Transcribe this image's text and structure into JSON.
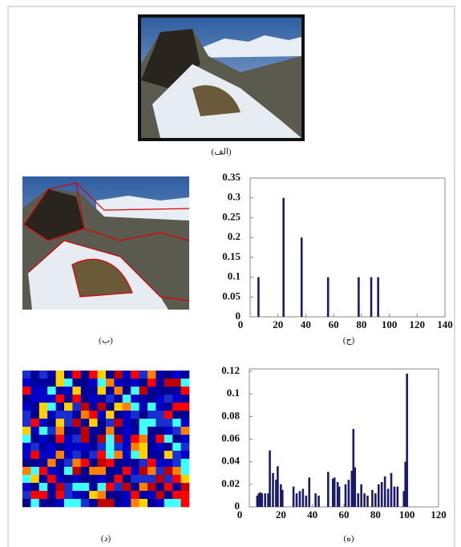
{
  "captions": [
    "(الف)",
    "(ب)",
    "(ج)",
    "(د)",
    "(ه)"
  ],
  "chart_data": [
    {
      "type": "bar",
      "color": "#1b1b6b",
      "x": [
        6,
        24,
        37,
        56,
        78,
        87,
        92
      ],
      "values": [
        0.1,
        0.3,
        0.2,
        0.1,
        0.1,
        0.1,
        0.1
      ],
      "xlim": [
        0,
        140
      ],
      "xticks": [
        0,
        20,
        40,
        60,
        80,
        100,
        120,
        140
      ],
      "ylim": [
        0,
        0.35
      ],
      "yticks": [
        0,
        0.05,
        0.1,
        0.15,
        0.2,
        0.25,
        0.3,
        0.35
      ]
    },
    {
      "type": "bar",
      "color": "#1b1b6b",
      "x": [
        5,
        6,
        7,
        8,
        10,
        12,
        13,
        15,
        17,
        18,
        20,
        21,
        28,
        30,
        32,
        34,
        36,
        38,
        42,
        44,
        50,
        53,
        54,
        56,
        57,
        61,
        63,
        65,
        66,
        67,
        69,
        71,
        73,
        75,
        78,
        80,
        82,
        84,
        86,
        88,
        90,
        92,
        94,
        98,
        99,
        100
      ],
      "values": [
        0.01,
        0.012,
        0.013,
        0.012,
        0.012,
        0.012,
        0.05,
        0.03,
        0.024,
        0.036,
        0.02,
        0.015,
        0.018,
        0.012,
        0.014,
        0.016,
        0.01,
        0.026,
        0.012,
        0.01,
        0.031,
        0.025,
        0.026,
        0.022,
        0.018,
        0.02,
        0.024,
        0.032,
        0.069,
        0.035,
        0.012,
        0.02,
        0.012,
        0.01,
        0.015,
        0.012,
        0.02,
        0.022,
        0.027,
        0.016,
        0.03,
        0.018,
        0.018,
        0.014,
        0.04,
        0.118
      ],
      "xlim": [
        0,
        120
      ],
      "xticks": [
        0,
        20,
        40,
        60,
        80,
        100,
        120
      ],
      "ylim": [
        0,
        0.12
      ],
      "yticks": [
        0,
        0.02,
        0.04,
        0.06,
        0.08,
        0.1,
        0.12
      ]
    }
  ]
}
